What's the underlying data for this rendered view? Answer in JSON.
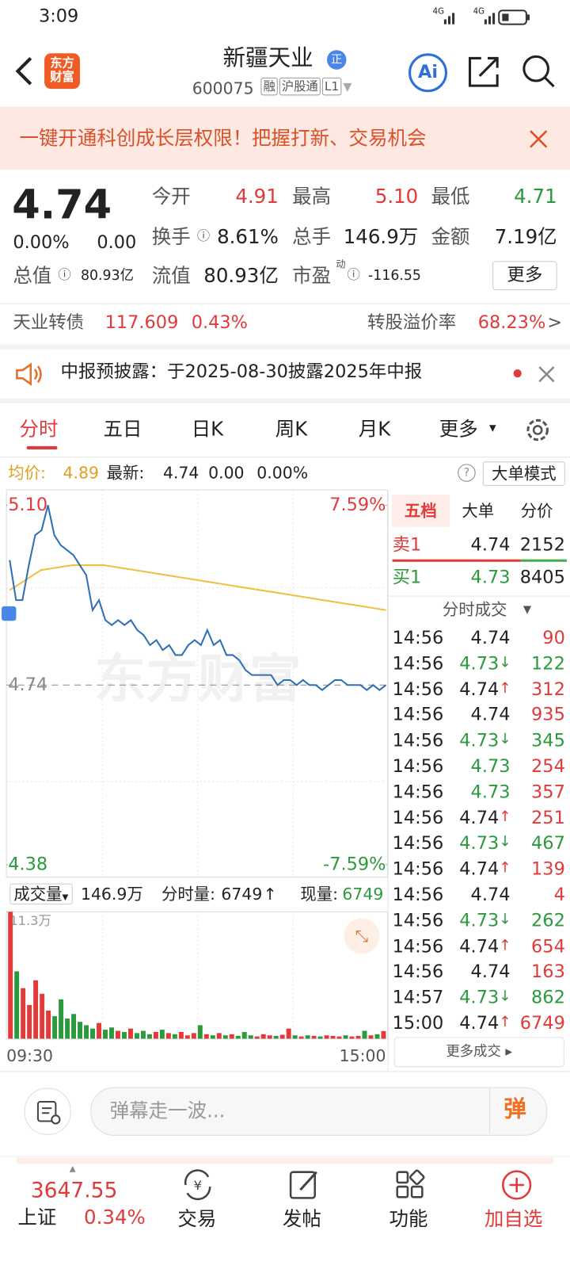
{
  "status_bar": {
    "time": "3:09",
    "network": [
      "4G",
      "4G"
    ]
  },
  "header": {
    "logo": [
      "东方",
      "财富"
    ],
    "name": "新疆天业",
    "badge": "正",
    "code": "600075",
    "tags": [
      "融",
      "沪股通",
      "L1"
    ],
    "ai": "Ai"
  },
  "banner": {
    "text": "一键开通科创成长层权限！把握打新、交易机会"
  },
  "quote": {
    "price": "4.74",
    "change_pct": "0.00%",
    "change": "0.00",
    "open_label": "今开",
    "open": "4.91",
    "high_label": "最高",
    "high": "5.10",
    "low_label": "最低",
    "low": "4.71",
    "turnover_label": "换手",
    "turnover": "8.61%",
    "volume_label": "总手",
    "volume": "146.9万",
    "amount_label": "金额",
    "amount": "7.19亿",
    "mcap_label": "总值",
    "mcap": "80.93亿",
    "float_label": "流值",
    "float": "80.93亿",
    "pe_label": "市盈",
    "pe_sup": "动",
    "pe": "-116.55",
    "more": "更多"
  },
  "bond": {
    "label": "天业转债",
    "price": "117.609",
    "pct": "0.43%",
    "premium_label": "转股溢价率",
    "premium": "68.23%",
    "arrow": ">"
  },
  "notice": {
    "text": "中报预披露：于2025-08-30披露2025年中报"
  },
  "tabs": [
    "分时",
    "五日",
    "日K",
    "周K",
    "月K",
    "更多"
  ],
  "info_bar": {
    "avg_label": "均价:",
    "avg": "4.89",
    "latest_label": "最新:",
    "latest": "4.74",
    "change": "0.00",
    "pct": "0.00%",
    "mode": "大单模式"
  },
  "chart": {
    "type": "line",
    "ylim": [
      4.38,
      5.1
    ],
    "yticks": [
      {
        "value": 5.1,
        "label": "5.10"
      },
      {
        "value": 4.74,
        "label": "4.74"
      },
      {
        "value": 4.38,
        "label": "4.38"
      }
    ],
    "y2lim": [
      -7.59,
      7.59
    ],
    "y2ticks": [
      {
        "value": 7.59,
        "label": "7.59%"
      },
      {
        "value": -7.59,
        "label": "-7.59%"
      }
    ],
    "price_color": "#2f6fb5",
    "avg_color": "#f0c040",
    "watermark": "东方财富",
    "price": [
      4.99,
      4.91,
      4.91,
      4.98,
      5.04,
      5.05,
      5.1,
      5.04,
      5.02,
      5.01,
      5.0,
      4.98,
      4.96,
      4.89,
      4.91,
      4.87,
      4.86,
      4.87,
      4.86,
      4.87,
      4.85,
      4.84,
      4.82,
      4.83,
      4.81,
      4.82,
      4.8,
      4.8,
      4.82,
      4.83,
      4.82,
      4.85,
      4.82,
      4.83,
      4.8,
      4.8,
      4.79,
      4.77,
      4.76,
      4.76,
      4.76,
      4.76,
      4.74,
      4.75,
      4.75,
      4.74,
      4.75,
      4.74,
      4.74,
      4.73,
      4.74,
      4.75,
      4.75,
      4.74,
      4.74,
      4.74,
      4.73,
      4.74,
      4.73,
      4.74
    ],
    "avg": [
      4.93,
      4.97,
      4.98,
      4.98,
      4.97,
      4.96,
      4.95,
      4.94,
      4.93,
      4.92,
      4.91,
      4.9,
      4.89
    ],
    "volume_label": "成交量",
    "volume_total": "146.9万",
    "period_label": "分时量:",
    "period_vol": "6749",
    "period_arrow": "↑",
    "now_label": "现量:",
    "now_vol": "6749",
    "vol_ylim": [
      0,
      113000
    ],
    "vol_ticks": [
      {
        "value": 113000,
        "label": "11.3万"
      }
    ],
    "volumes": [
      113000,
      60000,
      45000,
      30000,
      52000,
      40000,
      25000,
      20000,
      35000,
      18000,
      22000,
      15000,
      12000,
      9000,
      14000,
      8000,
      10000,
      7000,
      6000,
      9000,
      5000,
      7000,
      4000,
      6000,
      8000,
      5000,
      4000,
      6000,
      3000,
      5000,
      12000,
      4000,
      3000,
      5000,
      3000,
      4000,
      2500,
      6000,
      3000,
      2000,
      4000,
      3000,
      2500,
      3500,
      9000,
      3000,
      2000,
      3000,
      2500,
      2000,
      3000,
      2500,
      2000,
      3000,
      2000,
      2500,
      7000,
      3000,
      4000,
      6749
    ],
    "up_color": "#e03a3a",
    "down_color": "#2a9a3d",
    "x_labels": [
      "09:30",
      "15:00"
    ]
  },
  "order_book": {
    "tabs": [
      "五档",
      "大单",
      "分价"
    ],
    "ask": {
      "label": "卖1",
      "price": "4.74",
      "vol": "2152"
    },
    "bid": {
      "label": "买1",
      "price": "4.73",
      "vol": "8405"
    }
  },
  "trades_title": "分时成交",
  "trades": [
    {
      "time": "14:56",
      "price": 4.74,
      "vol": 90
    },
    {
      "time": "14:56",
      "price": 4.73,
      "dir": "↓",
      "vol": 122
    },
    {
      "time": "14:56",
      "price": 4.74,
      "dir": "↑",
      "vol": 312
    },
    {
      "time": "14:56",
      "price": 4.74,
      "vol": 935
    },
    {
      "time": "14:56",
      "price": 4.73,
      "dir": "↓",
      "vol": 345
    },
    {
      "time": "14:56",
      "price": 4.73,
      "vol": 254
    },
    {
      "time": "14:56",
      "price": 4.73,
      "vol": 357
    },
    {
      "time": "14:56",
      "price": 4.74,
      "dir": "↑",
      "vol": 251
    },
    {
      "time": "14:56",
      "price": 4.73,
      "dir": "↓",
      "vol": 467
    },
    {
      "time": "14:56",
      "price": 4.74,
      "dir": "↑",
      "vol": 139
    },
    {
      "time": "14:56",
      "price": 4.74,
      "vol": 4
    },
    {
      "time": "14:56",
      "price": 4.73,
      "dir": "↓",
      "vol": 262
    },
    {
      "time": "14:56",
      "price": 4.74,
      "dir": "↑",
      "vol": 654
    },
    {
      "time": "14:56",
      "price": 4.74,
      "vol": 163
    },
    {
      "time": "14:57",
      "price": 4.73,
      "dir": "↓",
      "vol": 862
    },
    {
      "time": "15:00",
      "price": 4.74,
      "dir": "↑",
      "vol": 6749
    }
  ],
  "more_trades": "更多成交",
  "comment": {
    "placeholder": "弹幕走一波...",
    "button": "弹"
  },
  "bottom_nav": {
    "index_value": "3647.55",
    "index_name": "上证",
    "index_pct": "0.34%",
    "items": [
      "交易",
      "发帖",
      "功能",
      "加自选"
    ]
  }
}
